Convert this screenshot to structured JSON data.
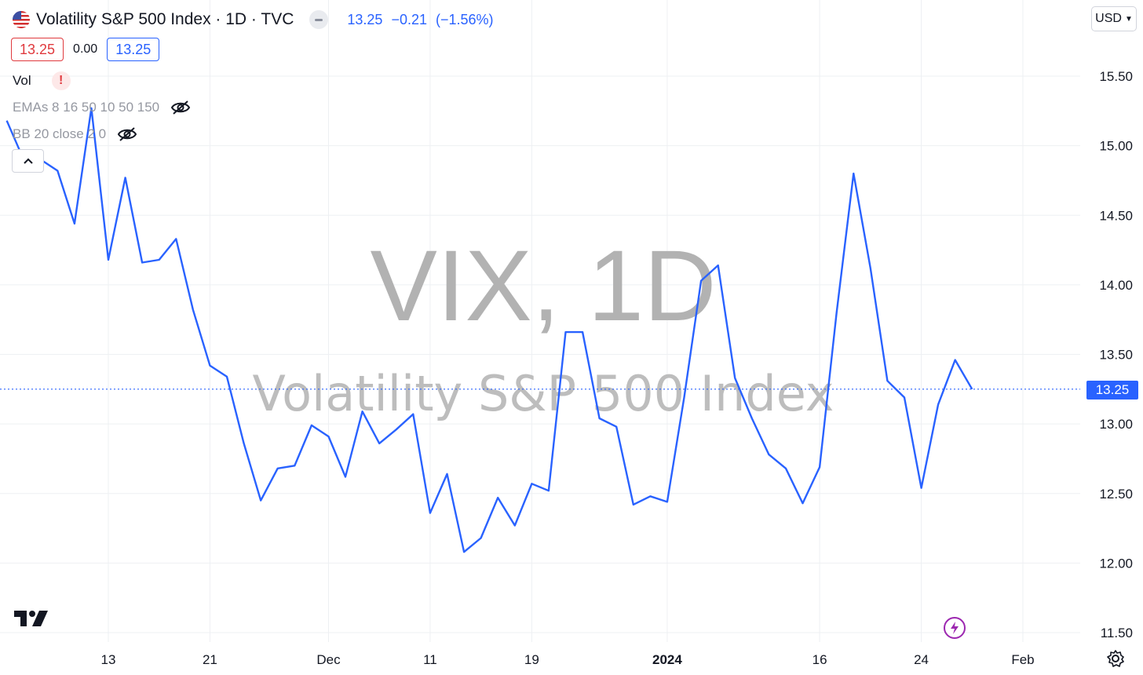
{
  "header": {
    "title": "Volatility S&P 500 Index · 1D · TVC",
    "last_value": "13.25",
    "change": "−0.21",
    "change_pct": "(−1.56%)",
    "sell_price": "13.25",
    "spread": "0.00",
    "buy_price": "13.25"
  },
  "indicators": {
    "vol_label": "Vol",
    "vol_warning": "!",
    "emas_label": "EMAs 8 16 50 10 50 150",
    "bb_label": "BB 20 close 2 0"
  },
  "currency": "USD",
  "watermark": {
    "symbol": "VIX, 1D",
    "name": "Volatility S&P 500 Index"
  },
  "last_price_label": "13.25",
  "colors": {
    "line": "#2962ff",
    "sell": "#e03a3e",
    "buy": "#2962ff",
    "watermark": "#b2b2b2",
    "grid": "#eef0f3",
    "flash": "#9c27b0"
  },
  "icons": {
    "flag": "us-flag-icon",
    "hide": "eye-off-icon",
    "collapse": "chevron-up-icon",
    "logo": "tradingview-logo",
    "flash": "lightning-icon",
    "settings": "gear-icon"
  },
  "chart_data": {
    "type": "line",
    "title": "Volatility S&P 500 Index · 1D · TVC",
    "x_tick_labels": [
      "13",
      "21",
      "Dec",
      "11",
      "19",
      "2024",
      "16",
      "24",
      "Feb"
    ],
    "x_tick_index": [
      0,
      6,
      13,
      19,
      25,
      33,
      42,
      48,
      54
    ],
    "x_bold_labels": [
      "2024"
    ],
    "y_ticks": [
      "11.50",
      "12.00",
      "12.50",
      "13.00",
      "13.50",
      "14.00",
      "14.50",
      "15.00",
      "15.50"
    ],
    "ylim": [
      11.5,
      15.5
    ],
    "x_index_range": [
      -6,
      57
    ],
    "grid": true,
    "last_price": 13.25,
    "series": [
      {
        "x": [
          -6,
          -5,
          -4,
          -3,
          -2,
          -1,
          0,
          1,
          2,
          3,
          4,
          5,
          6,
          7,
          8,
          9,
          10,
          11,
          12,
          13,
          14,
          15,
          16,
          17,
          18,
          19,
          20,
          21,
          22,
          23,
          24,
          25,
          26,
          27,
          28,
          29,
          30,
          31,
          32,
          33,
          34,
          35,
          36,
          37,
          38,
          39,
          40,
          41,
          42,
          43,
          44,
          45,
          46,
          47,
          48,
          49,
          50,
          51
        ],
        "values": [
          15.18,
          14.9,
          14.9,
          14.82,
          14.44,
          15.27,
          14.18,
          14.77,
          14.16,
          14.18,
          14.33,
          13.82,
          13.42,
          13.34,
          12.86,
          12.45,
          12.68,
          12.7,
          12.99,
          12.91,
          12.62,
          13.09,
          12.86,
          12.96,
          13.07,
          12.36,
          12.64,
          12.08,
          12.18,
          12.47,
          12.27,
          12.57,
          12.52,
          13.66,
          13.66,
          13.04,
          12.98,
          12.42,
          12.48,
          12.44,
          13.19,
          14.03,
          14.14,
          13.33,
          13.04,
          12.78,
          12.68,
          12.43,
          12.69,
          13.8,
          14.8,
          14.12,
          13.31,
          13.19,
          12.54,
          13.14,
          13.46,
          13.25
        ]
      }
    ]
  }
}
